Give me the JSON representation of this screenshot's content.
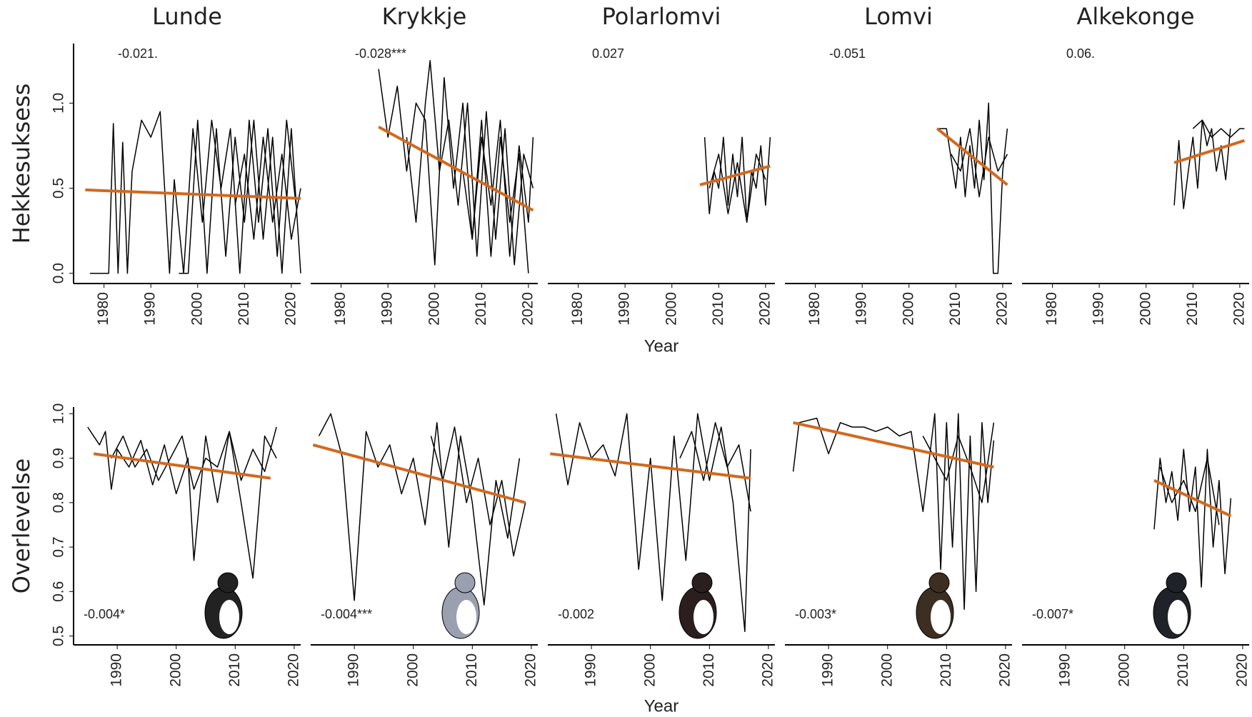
{
  "chart_data": [
    {
      "type": "line",
      "title": "Lunde",
      "annotation": "-0.021.",
      "ylabel": "Hekkesuksess",
      "xlim": [
        1973.5,
        2022
      ],
      "xticks": [
        1980,
        1990,
        2000,
        2010,
        2020
      ],
      "ylim": [
        -0.06,
        1.35
      ],
      "yticks": [
        {
          "value": 0,
          "label": "0.0"
        },
        0.5,
        {
          "value": 1,
          "label": "1.0"
        }
      ],
      "series": [
        {
          "color": "#000000",
          "x": [
            1977,
            1981,
            1982,
            1983,
            1984,
            1985,
            1986,
            1988,
            1990,
            1992,
            1994,
            1995,
            1997,
            1999,
            2001,
            2003,
            2005,
            2007,
            2009,
            2011,
            2013,
            2015,
            2017,
            2019,
            2021
          ],
          "values": [
            0,
            0,
            0.88,
            0,
            0.77,
            0,
            0.6,
            0.9,
            0.8,
            0.95,
            0,
            0.55,
            0,
            0.85,
            0.3,
            0.9,
            0.5,
            0.85,
            0,
            0.9,
            0.3,
            0.85,
            0.1,
            0.9,
            0.4
          ]
        },
        {
          "color": "#000000",
          "x": [
            1996,
            1998,
            2000,
            2002,
            2004,
            2006,
            2008,
            2010,
            2012,
            2014,
            2016,
            2018,
            2020,
            2022
          ],
          "values": [
            0,
            0,
            0.9,
            0,
            0.85,
            0.1,
            0.8,
            0.3,
            0.9,
            0.2,
            0.8,
            0,
            0.85,
            0
          ]
        },
        {
          "color": "#000000",
          "x": [
            2008,
            2010,
            2012,
            2014,
            2016,
            2018,
            2020,
            2022
          ],
          "values": [
            0.4,
            0.7,
            0.2,
            0.8,
            0.3,
            0.7,
            0.2,
            0.5
          ]
        },
        {
          "color": "#d2691e",
          "x": [
            1976,
            2022
          ],
          "values": [
            0.49,
            0.44
          ]
        }
      ]
    },
    {
      "type": "line",
      "title": "Krykkje",
      "annotation": "-0.028***",
      "xlim": [
        1973.5,
        2022
      ],
      "xticks": [
        1980,
        1990,
        2000,
        2010,
        2020
      ],
      "ylim": [
        -0.06,
        1.35
      ],
      "series": [
        {
          "color": "#000000",
          "x": [
            1988,
            1990,
            1992,
            1994,
            1996,
            1998,
            2000,
            2002,
            2004,
            2006,
            2008,
            2010,
            2012,
            2014,
            2016,
            2018,
            2020
          ],
          "values": [
            1.2,
            0.8,
            1.1,
            0.6,
            1.0,
            0.9,
            0.05,
            1.15,
            0.5,
            1.0,
            0.2,
            0.9,
            0.1,
            0.8,
            0.3,
            0.7,
            0
          ]
        },
        {
          "color": "#000000",
          "x": [
            1994,
            1996,
            1998,
            1999,
            2001,
            2003,
            2005,
            2007,
            2009,
            2011,
            2013,
            2015,
            2017,
            2019,
            2021
          ],
          "values": [
            0.8,
            0.3,
            1.0,
            1.25,
            0.6,
            0.9,
            0.4,
            1.0,
            0.1,
            0.95,
            0.2,
            0.85,
            0.05,
            0.7,
            0.5
          ]
        },
        {
          "color": "#000000",
          "x": [
            2006,
            2008,
            2010,
            2012,
            2014,
            2016,
            2018,
            2020,
            2021
          ],
          "values": [
            0.6,
            0.2,
            0.8,
            0.4,
            0.9,
            0.1,
            0.75,
            0.3,
            0.8
          ]
        },
        {
          "color": "#d2691e",
          "x": [
            1988,
            2021
          ],
          "values": [
            0.86,
            0.37
          ]
        }
      ]
    },
    {
      "type": "line",
      "title": "Polarlomvi",
      "annotation": "0.027",
      "xlabel": "Year",
      "xlim": [
        1973.5,
        2022
      ],
      "xticks": [
        1980,
        1990,
        2000,
        2010,
        2020
      ],
      "ylim": [
        -0.06,
        1.35
      ],
      "series": [
        {
          "color": "#000000",
          "x": [
            2007,
            2008,
            2009,
            2010,
            2011,
            2012,
            2013,
            2014,
            2015,
            2016,
            2017,
            2018,
            2019,
            2020,
            2021
          ],
          "values": [
            0.8,
            0.35,
            0.6,
            0.5,
            0.8,
            0.4,
            0.7,
            0.45,
            0.8,
            0.3,
            0.6,
            0.5,
            0.75,
            0.4,
            0.8
          ]
        },
        {
          "color": "#000000",
          "x": [
            2008,
            2010,
            2012,
            2014,
            2016,
            2018,
            2020
          ],
          "values": [
            0.5,
            0.7,
            0.35,
            0.65,
            0.3,
            0.7,
            0.55
          ]
        },
        {
          "color": "#d2691e",
          "x": [
            2006,
            2021
          ],
          "values": [
            0.52,
            0.63
          ]
        }
      ]
    },
    {
      "type": "line",
      "title": "Lomvi",
      "annotation": "-0.051",
      "xlim": [
        1973.5,
        2022
      ],
      "xticks": [
        1980,
        1990,
        2000,
        2010,
        2020
      ],
      "ylim": [
        -0.06,
        1.35
      ],
      "series": [
        {
          "color": "#000000",
          "x": [
            2006,
            2008,
            2010,
            2011,
            2012,
            2013,
            2014,
            2015,
            2016,
            2017,
            2018,
            2019,
            2020,
            2021
          ],
          "values": [
            0.85,
            0.85,
            0.5,
            0.8,
            0.45,
            0.75,
            0.5,
            0.9,
            0.55,
            1.0,
            0,
            0,
            0.6,
            0.85
          ]
        },
        {
          "color": "#000000",
          "x": [
            2009,
            2011,
            2013,
            2015,
            2017,
            2019,
            2021
          ],
          "values": [
            0.7,
            0.6,
            0.85,
            0.45,
            0.8,
            0.6,
            0.7
          ]
        },
        {
          "color": "#d2691e",
          "x": [
            2006,
            2021
          ],
          "values": [
            0.85,
            0.52
          ]
        }
      ]
    },
    {
      "type": "line",
      "title": "Alkekonge",
      "annotation": "0.06.",
      "xlim": [
        1973.5,
        2022
      ],
      "xticks": [
        1980,
        1990,
        2000,
        2010,
        2020
      ],
      "ylim": [
        -0.06,
        1.35
      ],
      "series": [
        {
          "color": "#000000",
          "x": [
            2006,
            2007,
            2008,
            2009,
            2010,
            2011,
            2012,
            2013,
            2014,
            2015,
            2016,
            2017,
            2018
          ],
          "values": [
            0.4,
            0.78,
            0.38,
            0.6,
            0.8,
            0.5,
            0.9,
            0.75,
            0.85,
            0.6,
            0.75,
            0.55,
            0.85
          ]
        },
        {
          "color": "#000000",
          "x": [
            2010,
            2012,
            2014,
            2016,
            2018,
            2020,
            2021
          ],
          "values": [
            0.85,
            0.9,
            0.8,
            0.85,
            0.8,
            0.85,
            0.85
          ]
        },
        {
          "color": "#d2691e",
          "x": [
            2006,
            2021
          ],
          "values": [
            0.65,
            0.78
          ]
        }
      ]
    },
    {
      "type": "line",
      "annotation": "-0.004*",
      "ylabel": "Overlevelse",
      "xlim": [
        1982.6,
        2021.1
      ],
      "xticks": [
        1990,
        2000,
        2010,
        2020
      ],
      "ylim": [
        0.48,
        1.015
      ],
      "yticks": [
        0.5,
        0.6,
        0.7,
        0.8,
        0.9,
        {
          "value": 1,
          "label": "1.0"
        }
      ],
      "series": [
        {
          "color": "#000000",
          "x": [
            1985,
            1987,
            1988,
            1989,
            1990,
            1992,
            1994,
            1996,
            1998,
            2000,
            2002,
            2003,
            2005,
            2007,
            2009,
            2011,
            2013,
            2015,
            2017
          ],
          "values": [
            0.97,
            0.93,
            0.96,
            0.83,
            0.92,
            0.88,
            0.94,
            0.84,
            0.93,
            0.82,
            0.9,
            0.67,
            0.95,
            0.8,
            0.96,
            0.8,
            0.63,
            0.95,
            0.9
          ]
        },
        {
          "color": "#000000",
          "x": [
            1989,
            1991,
            1993,
            1995,
            1997,
            1999,
            2001,
            2003,
            2005,
            2007,
            2009,
            2011,
            2013,
            2015,
            2017
          ],
          "values": [
            0.9,
            0.95,
            0.88,
            0.92,
            0.85,
            0.9,
            0.95,
            0.83,
            0.9,
            0.88,
            0.96,
            0.85,
            0.92,
            0.87,
            0.97
          ]
        },
        {
          "color": "#d2691e",
          "x": [
            1986,
            2016
          ],
          "values": [
            0.91,
            0.855
          ]
        }
      ]
    },
    {
      "type": "line",
      "annotation": "-0.004***",
      "xlim": [
        1982.6,
        2021.1
      ],
      "xticks": [
        1990,
        2000,
        2010,
        2020
      ],
      "ylim": [
        0.48,
        1.015
      ],
      "series": [
        {
          "color": "#000000",
          "x": [
            1984,
            1986,
            1988,
            1990,
            1992,
            1994,
            1996,
            1998,
            2000,
            2002,
            2004,
            2006,
            2008,
            2010,
            2012,
            2014,
            2016,
            2018
          ],
          "values": [
            0.95,
            1.0,
            0.9,
            0.58,
            0.96,
            0.88,
            0.93,
            0.82,
            0.9,
            0.75,
            0.98,
            0.7,
            0.95,
            0.8,
            0.57,
            0.85,
            0.72,
            0.9
          ]
        },
        {
          "color": "#000000",
          "x": [
            2003,
            2005,
            2007,
            2009,
            2011,
            2013,
            2015,
            2017,
            2019
          ],
          "values": [
            0.95,
            0.85,
            0.97,
            0.8,
            0.9,
            0.75,
            0.85,
            0.68,
            0.8
          ]
        },
        {
          "color": "#d2691e",
          "x": [
            1983,
            2019
          ],
          "values": [
            0.93,
            0.8
          ]
        }
      ]
    },
    {
      "type": "line",
      "annotation": "-0.002",
      "xlabel": "Year",
      "xlim": [
        1982.6,
        2021.1
      ],
      "xticks": [
        1990,
        2000,
        2010,
        2020
      ],
      "ylim": [
        0.48,
        1.015
      ],
      "series": [
        {
          "color": "#000000",
          "x": [
            1984,
            1986,
            1988,
            1990,
            1992,
            1994,
            1996,
            1998,
            2000,
            2002,
            2004,
            2006,
            2008,
            2010,
            2012,
            2014,
            2016,
            2017
          ],
          "values": [
            1.0,
            0.84,
            0.98,
            0.9,
            0.93,
            0.86,
            1.0,
            0.65,
            0.9,
            0.58,
            0.95,
            0.67,
            1.0,
            0.85,
            0.97,
            0.8,
            0.51,
            0.92
          ]
        },
        {
          "color": "#000000",
          "x": [
            2005,
            2007,
            2009,
            2011,
            2013,
            2015,
            2017
          ],
          "values": [
            0.9,
            0.96,
            0.85,
            0.98,
            0.88,
            0.93,
            0.78
          ]
        },
        {
          "color": "#d2691e",
          "x": [
            1983,
            2017
          ],
          "values": [
            0.91,
            0.855
          ]
        }
      ]
    },
    {
      "type": "line",
      "annotation": "-0.003*",
      "xlim": [
        1982.6,
        2021.1
      ],
      "xticks": [
        1990,
        2000,
        2010,
        2020
      ],
      "ylim": [
        0.48,
        1.015
      ],
      "series": [
        {
          "color": "#000000",
          "x": [
            1984,
            1985,
            1988,
            1990,
            1992,
            1994,
            1996,
            1998,
            2000,
            2002,
            2004,
            2006,
            2008,
            2009,
            2010,
            2011,
            2012,
            2013,
            2014,
            2015,
            2016,
            2017,
            2018
          ],
          "values": [
            0.87,
            0.98,
            0.99,
            0.91,
            0.98,
            0.97,
            0.97,
            0.96,
            0.97,
            0.95,
            0.96,
            0.78,
            1.0,
            0.65,
            0.98,
            0.7,
            1.0,
            0.56,
            0.95,
            0.6,
            0.98,
            0.8,
            0.94
          ]
        },
        {
          "color": "#000000",
          "x": [
            2006,
            2008,
            2010,
            2012,
            2014,
            2016,
            2018
          ],
          "values": [
            0.95,
            0.9,
            0.85,
            0.95,
            0.88,
            0.8,
            0.98
          ]
        },
        {
          "color": "#d2691e",
          "x": [
            1984,
            2018
          ],
          "values": [
            0.98,
            0.88
          ]
        }
      ]
    },
    {
      "type": "line",
      "annotation": "-0.007*",
      "xlim": [
        1982.6,
        2021.1
      ],
      "xticks": [
        1990,
        2000,
        2010,
        2020
      ],
      "ylim": [
        0.48,
        1.015
      ],
      "series": [
        {
          "color": "#000000",
          "x": [
            2005,
            2006,
            2007,
            2008,
            2009,
            2010,
            2011,
            2012,
            2013,
            2014,
            2015,
            2016,
            2017,
            2018
          ],
          "values": [
            0.74,
            0.9,
            0.8,
            0.87,
            0.76,
            0.92,
            0.78,
            0.88,
            0.61,
            0.92,
            0.7,
            0.85,
            0.64,
            0.81
          ]
        },
        {
          "color": "#000000",
          "x": [
            2006,
            2008,
            2010,
            2012,
            2014,
            2016
          ],
          "values": [
            0.88,
            0.8,
            0.85,
            0.78,
            0.9,
            0.75
          ]
        },
        {
          "color": "#d2691e",
          "x": [
            2005,
            2018
          ],
          "values": [
            0.85,
            0.77
          ]
        }
      ]
    }
  ]
}
